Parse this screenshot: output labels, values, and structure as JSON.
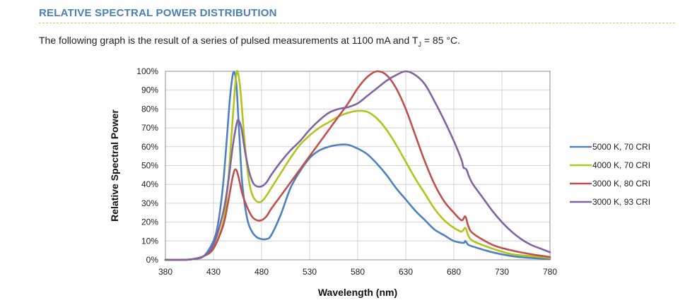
{
  "header": {
    "title": "RELATIVE SPECTRAL POWER DISTRIBUTION",
    "intro_prefix": "The following graph is the result of a series of pulsed measurements at 1100 mA and T",
    "intro_sub": "J",
    "intro_suffix": " = 85 °C."
  },
  "chart_data": {
    "type": "line",
    "xlabel": "Wavelength (nm)",
    "ylabel": "Relative Spectral Power",
    "xlim": [
      380,
      780
    ],
    "ylim": [
      0,
      100
    ],
    "x_ticks": [
      "380",
      "430",
      "480",
      "530",
      "580",
      "630",
      "680",
      "730",
      "780"
    ],
    "y_ticks": [
      "0%",
      "10%",
      "20%",
      "30%",
      "40%",
      "50%",
      "60%",
      "70%",
      "80%",
      "90%",
      "100%"
    ],
    "grid": true,
    "legend_position": "right",
    "series": [
      {
        "name": "5000 K, 70 CRI",
        "color": "#4f81bd",
        "points": [
          [
            380,
            0
          ],
          [
            400,
            0
          ],
          [
            410,
            0.5
          ],
          [
            420,
            2
          ],
          [
            430,
            10
          ],
          [
            435,
            20
          ],
          [
            440,
            40
          ],
          [
            444,
            65
          ],
          [
            447,
            85
          ],
          [
            450,
            98
          ],
          [
            452,
            99
          ],
          [
            454,
            92
          ],
          [
            457,
            65
          ],
          [
            460,
            40
          ],
          [
            465,
            22
          ],
          [
            470,
            15
          ],
          [
            475,
            12
          ],
          [
            480,
            11
          ],
          [
            485,
            11
          ],
          [
            490,
            13
          ],
          [
            500,
            24
          ],
          [
            510,
            38
          ],
          [
            520,
            47
          ],
          [
            530,
            54
          ],
          [
            540,
            58
          ],
          [
            550,
            60
          ],
          [
            560,
            61
          ],
          [
            570,
            61
          ],
          [
            580,
            59
          ],
          [
            590,
            56
          ],
          [
            600,
            51
          ],
          [
            610,
            45
          ],
          [
            620,
            38
          ],
          [
            630,
            32
          ],
          [
            640,
            26
          ],
          [
            650,
            21
          ],
          [
            660,
            16
          ],
          [
            670,
            13
          ],
          [
            680,
            10
          ],
          [
            690,
            9
          ],
          [
            692,
            10
          ],
          [
            695,
            8
          ],
          [
            700,
            7
          ],
          [
            720,
            4
          ],
          [
            740,
            2
          ],
          [
            760,
            1
          ],
          [
            780,
            0.5
          ]
        ]
      },
      {
        "name": "4000 K, 70 CRI",
        "color": "#b2c41d",
        "points": [
          [
            380,
            0
          ],
          [
            400,
            0
          ],
          [
            410,
            0.5
          ],
          [
            420,
            2
          ],
          [
            430,
            6
          ],
          [
            440,
            20
          ],
          [
            445,
            40
          ],
          [
            450,
            75
          ],
          [
            453,
            95
          ],
          [
            455,
            100
          ],
          [
            458,
            90
          ],
          [
            462,
            65
          ],
          [
            466,
            45
          ],
          [
            470,
            35
          ],
          [
            475,
            31
          ],
          [
            480,
            31
          ],
          [
            485,
            34
          ],
          [
            490,
            38
          ],
          [
            500,
            46
          ],
          [
            510,
            54
          ],
          [
            520,
            61
          ],
          [
            530,
            66
          ],
          [
            540,
            70
          ],
          [
            550,
            73
          ],
          [
            560,
            76
          ],
          [
            570,
            78
          ],
          [
            580,
            79
          ],
          [
            590,
            78.5
          ],
          [
            600,
            75
          ],
          [
            610,
            69
          ],
          [
            620,
            61
          ],
          [
            630,
            52
          ],
          [
            640,
            43
          ],
          [
            650,
            35
          ],
          [
            660,
            27
          ],
          [
            670,
            21
          ],
          [
            680,
            17
          ],
          [
            688,
            15
          ],
          [
            692,
            17
          ],
          [
            695,
            13
          ],
          [
            700,
            10
          ],
          [
            720,
            6
          ],
          [
            740,
            3
          ],
          [
            760,
            2
          ],
          [
            780,
            1
          ]
        ]
      },
      {
        "name": "3000 K, 80 CRI",
        "color": "#c0504d",
        "points": [
          [
            380,
            0
          ],
          [
            400,
            0
          ],
          [
            410,
            0.5
          ],
          [
            420,
            2
          ],
          [
            430,
            6
          ],
          [
            440,
            18
          ],
          [
            445,
            30
          ],
          [
            450,
            44
          ],
          [
            453,
            48
          ],
          [
            456,
            44
          ],
          [
            460,
            35
          ],
          [
            465,
            28
          ],
          [
            470,
            23
          ],
          [
            475,
            21
          ],
          [
            480,
            21
          ],
          [
            485,
            23
          ],
          [
            490,
            27
          ],
          [
            500,
            34
          ],
          [
            510,
            41
          ],
          [
            520,
            48
          ],
          [
            530,
            55
          ],
          [
            540,
            62
          ],
          [
            550,
            69
          ],
          [
            560,
            76
          ],
          [
            570,
            83
          ],
          [
            580,
            91
          ],
          [
            590,
            97
          ],
          [
            600,
            100
          ],
          [
            610,
            98
          ],
          [
            620,
            91
          ],
          [
            630,
            80
          ],
          [
            640,
            66
          ],
          [
            650,
            52
          ],
          [
            660,
            40
          ],
          [
            670,
            31
          ],
          [
            680,
            25
          ],
          [
            688,
            21
          ],
          [
            692,
            23
          ],
          [
            695,
            18
          ],
          [
            700,
            14
          ],
          [
            720,
            8
          ],
          [
            740,
            5
          ],
          [
            760,
            3
          ],
          [
            780,
            1.5
          ]
        ]
      },
      {
        "name": "3000 K, 93 CRI",
        "color": "#8064a2",
        "points": [
          [
            380,
            0
          ],
          [
            400,
            0
          ],
          [
            410,
            0.5
          ],
          [
            420,
            2
          ],
          [
            430,
            8
          ],
          [
            440,
            25
          ],
          [
            445,
            40
          ],
          [
            450,
            60
          ],
          [
            454,
            72
          ],
          [
            456,
            74
          ],
          [
            459,
            70
          ],
          [
            463,
            57
          ],
          [
            467,
            47
          ],
          [
            471,
            41
          ],
          [
            475,
            39
          ],
          [
            480,
            39
          ],
          [
            485,
            41
          ],
          [
            490,
            45
          ],
          [
            500,
            52
          ],
          [
            510,
            58
          ],
          [
            520,
            63
          ],
          [
            530,
            69
          ],
          [
            540,
            74
          ],
          [
            550,
            78
          ],
          [
            560,
            80
          ],
          [
            570,
            81
          ],
          [
            580,
            83
          ],
          [
            590,
            87
          ],
          [
            600,
            91
          ],
          [
            610,
            95
          ],
          [
            620,
            98
          ],
          [
            630,
            100
          ],
          [
            640,
            98
          ],
          [
            650,
            93
          ],
          [
            660,
            84
          ],
          [
            670,
            74
          ],
          [
            680,
            63
          ],
          [
            688,
            53
          ],
          [
            690,
            49
          ],
          [
            693,
            48
          ],
          [
            696,
            44
          ],
          [
            700,
            40
          ],
          [
            710,
            33
          ],
          [
            720,
            26
          ],
          [
            730,
            20
          ],
          [
            740,
            15
          ],
          [
            750,
            11
          ],
          [
            760,
            8
          ],
          [
            770,
            6
          ],
          [
            780,
            4
          ]
        ]
      }
    ]
  }
}
